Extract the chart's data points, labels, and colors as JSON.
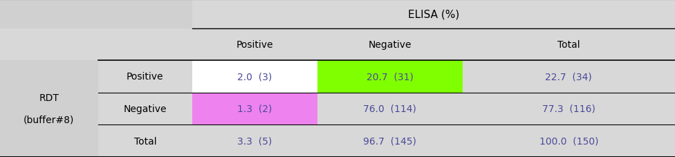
{
  "title": "ELISA (%)",
  "col_headers": [
    "Positive",
    "Negative",
    "Total"
  ],
  "row_headers": [
    "Positive",
    "Negative",
    "Total"
  ],
  "row_group_label_line1": "RDT",
  "row_group_label_line2": "(buffer#8)",
  "cell_values": [
    [
      "2.0  (3)",
      "20.7  (31)",
      "22.7  (34)"
    ],
    [
      "1.3  (2)",
      "76.0  (114)",
      "77.3  (116)"
    ],
    [
      "3.3  (5)",
      "96.7  (145)",
      "100.0  (150)"
    ]
  ],
  "cell_colors": [
    [
      "#ffffff",
      "#80ff00",
      "#d8d8d8"
    ],
    [
      "#ee82ee",
      "#d8d8d8",
      "#d8d8d8"
    ],
    [
      "#d8d8d8",
      "#d8d8d8",
      "#d8d8d8"
    ]
  ],
  "header_bg": "#d8d8d8",
  "outer_bg": "#d0d0d0",
  "fig_bg": "#d0d0d0",
  "text_color": "#4a4a9a",
  "header_text_color": "#000000",
  "figsize": [
    9.76,
    2.28
  ],
  "dpi": 100,
  "col_bounds": [
    0.0,
    0.145,
    0.285,
    0.47,
    0.685,
    1.0
  ],
  "row_bounds": [
    1.0,
    0.815,
    0.615,
    0.41,
    0.205,
    0.0
  ]
}
